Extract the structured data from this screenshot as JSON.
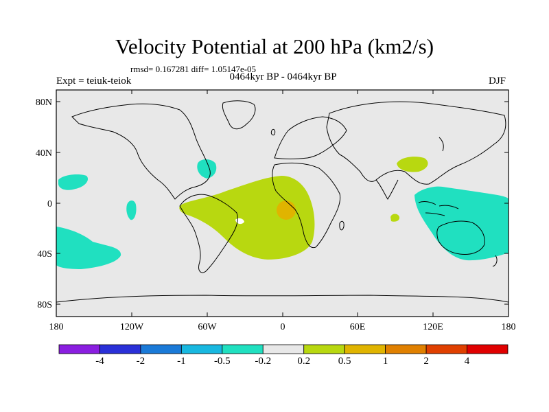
{
  "title": "Velocity Potential at 200 hPa (km2/s)",
  "stats": "rmsd= 0.167281  diff= 1.05147e-05",
  "expt": "Expt = teiuk-teiok",
  "center_label": "0464kyr BP - 0464kyr BP",
  "season": "DJF",
  "lat_labels": [
    "80N",
    "40N",
    "0",
    "40S",
    "80S"
  ],
  "lon_labels": [
    "180",
    "120W",
    "60W",
    "0",
    "60E",
    "120E",
    "180"
  ],
  "colorbar": {
    "colors": [
      "#8a1ee0",
      "#2a30d8",
      "#1a7ad8",
      "#18b8e0",
      "#20e0c0",
      "#e8e8e8",
      "#b8d810",
      "#e0b400",
      "#e08000",
      "#e04000",
      "#e00000"
    ],
    "labels": [
      "-4",
      "-2",
      "-1",
      "-0.5",
      "-0.2",
      "0.2",
      "0.5",
      "1",
      "2",
      "4"
    ]
  }
}
